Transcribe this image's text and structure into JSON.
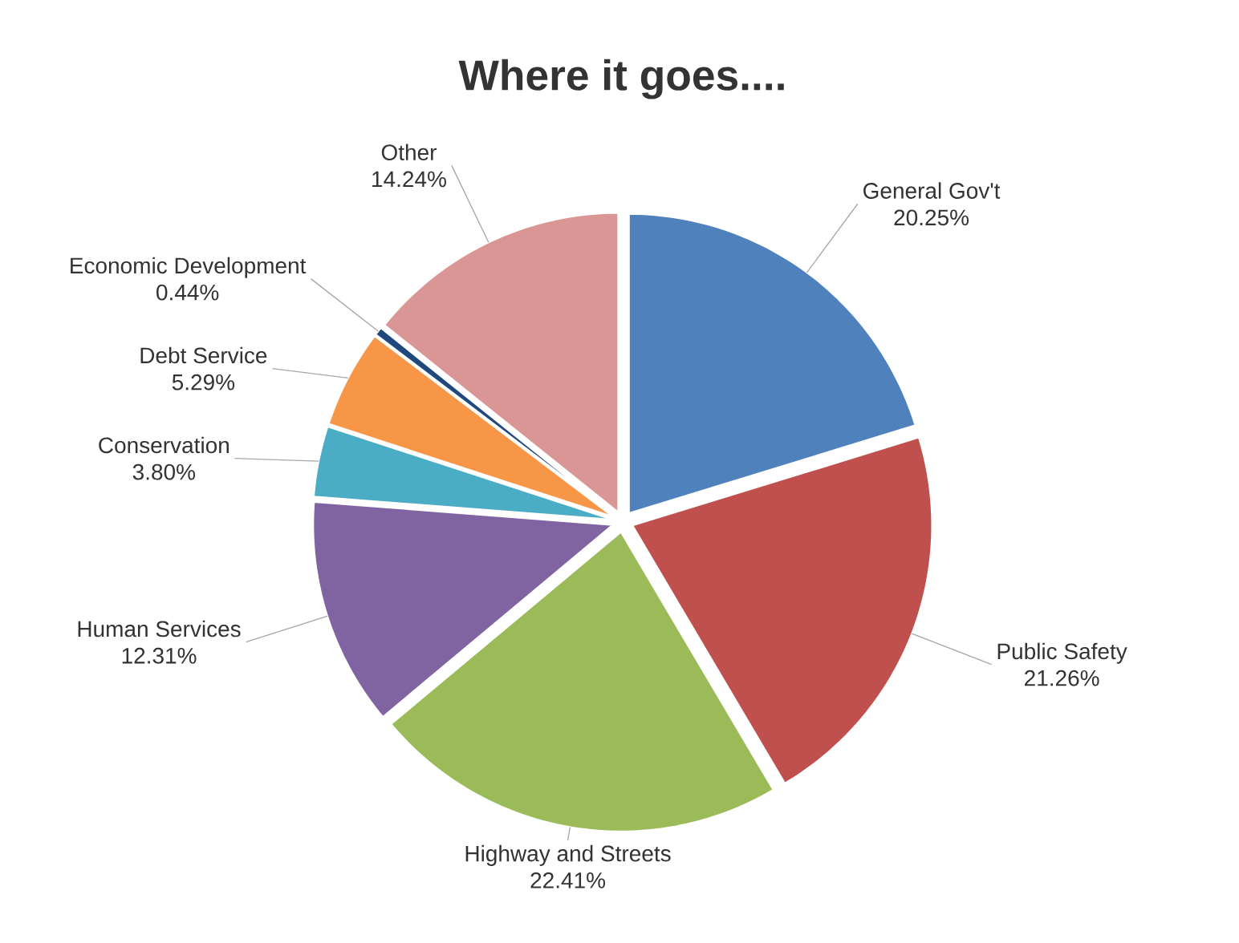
{
  "chart_data": {
    "type": "pie",
    "title": "Where it goes....",
    "categories": [
      "General Gov't",
      "Public Safety",
      "Highway and Streets",
      "Human Services",
      "Conservation",
      "Debt Service",
      "Economic Development",
      "Other"
    ],
    "values": [
      20.25,
      21.26,
      22.41,
      12.31,
      3.8,
      5.29,
      0.44,
      14.24
    ],
    "value_labels": [
      "20.25%",
      "21.26%",
      "22.41%",
      "12.31%",
      "3.80%",
      "5.29%",
      "0.44%",
      "14.24%"
    ],
    "colors": [
      "#4f81bd",
      "#c0504d",
      "#9bbb59",
      "#8064a2",
      "#4bacc6",
      "#f79646",
      "#1f497d",
      "#d99694"
    ]
  }
}
